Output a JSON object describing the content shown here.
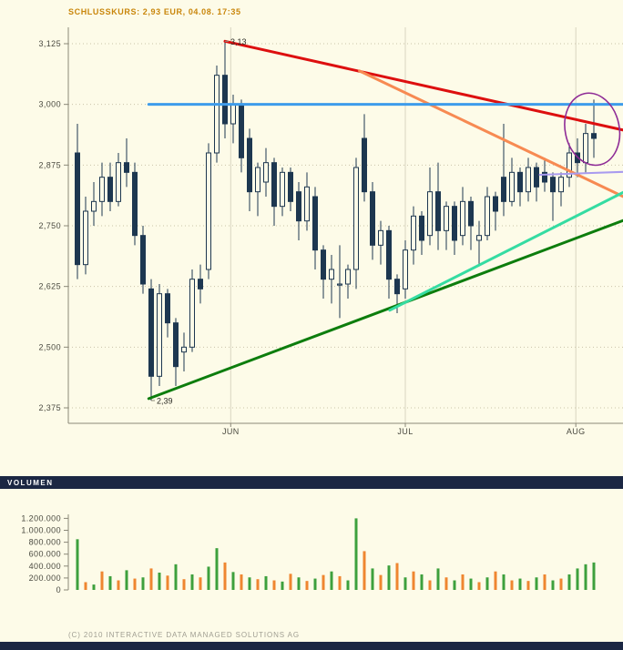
{
  "header": {
    "quote": "SCHLUSSKURS: 2,93 EUR, 04.08. 17:35"
  },
  "volume_panel": {
    "header_label": "VOLUMEN"
  },
  "footer": {
    "copyright": "(C) 2010 INTERACTIVE DATA MANAGED SOLUTIONS AG"
  },
  "colors": {
    "background": "#fdfbe8",
    "candle": "#1d3750",
    "volume_up_bar": "#3da03d",
    "volume_down_bar": "#ef8630",
    "panel_bar": "#1b2743",
    "quote_text": "#c9860b",
    "trend_red": "#dd0f0f",
    "trend_orange": "#f78a52",
    "trend_blue": "#3e9ceb",
    "trend_darkgreen": "#0d7d0d",
    "trend_springgreen": "#35dca2",
    "trend_lavender": "#a99bef",
    "highlight_purple": "#8e2b96"
  },
  "chart_data": {
    "type": "candlestick",
    "title": "",
    "last_price": "2,93",
    "price_axis": {
      "ticks": [
        {
          "label": "3,125",
          "value": 3.125
        },
        {
          "label": "3,000",
          "value": 3.0
        },
        {
          "label": "2,875",
          "value": 2.875
        },
        {
          "label": "2,750",
          "value": 2.75
        },
        {
          "label": "2,625",
          "value": 2.625
        },
        {
          "label": "2,500",
          "value": 2.5
        },
        {
          "label": "2,375",
          "value": 2.375
        }
      ],
      "range": [
        2.34,
        3.17
      ],
      "grid": "dotted-horizontal"
    },
    "x_axis": {
      "months": [
        {
          "label": "JUN",
          "i": 18.7
        },
        {
          "label": "JUL",
          "i": 40
        },
        {
          "label": "AUG",
          "i": 60.8
        }
      ]
    },
    "candles": [
      [
        2.9,
        2.96,
        2.64,
        2.67
      ],
      [
        2.67,
        2.81,
        2.65,
        2.78
      ],
      [
        2.78,
        2.84,
        2.75,
        2.8
      ],
      [
        2.8,
        2.88,
        2.77,
        2.85
      ],
      [
        2.85,
        2.88,
        2.78,
        2.8
      ],
      [
        2.8,
        2.9,
        2.79,
        2.88
      ],
      [
        2.88,
        2.93,
        2.83,
        2.86
      ],
      [
        2.86,
        2.88,
        2.71,
        2.73
      ],
      [
        2.73,
        2.75,
        2.61,
        2.63
      ],
      [
        2.62,
        2.64,
        2.39,
        2.44
      ],
      [
        2.44,
        2.63,
        2.42,
        2.61
      ],
      [
        2.61,
        2.62,
        2.52,
        2.55
      ],
      [
        2.55,
        2.56,
        2.42,
        2.46
      ],
      [
        2.49,
        2.53,
        2.45,
        2.5
      ],
      [
        2.5,
        2.66,
        2.49,
        2.64
      ],
      [
        2.64,
        2.67,
        2.59,
        2.62
      ],
      [
        2.66,
        2.92,
        2.64,
        2.9
      ],
      [
        2.9,
        3.08,
        2.88,
        3.06
      ],
      [
        3.06,
        3.13,
        2.93,
        2.96
      ],
      [
        2.96,
        3.02,
        2.92,
        3.0
      ],
      [
        3.0,
        3.01,
        2.86,
        2.89
      ],
      [
        2.93,
        2.95,
        2.78,
        2.82
      ],
      [
        2.82,
        2.88,
        2.77,
        2.87
      ],
      [
        2.84,
        2.91,
        2.81,
        2.88
      ],
      [
        2.88,
        2.89,
        2.75,
        2.79
      ],
      [
        2.79,
        2.87,
        2.77,
        2.86
      ],
      [
        2.86,
        2.87,
        2.78,
        2.8
      ],
      [
        2.82,
        2.84,
        2.72,
        2.76
      ],
      [
        2.76,
        2.86,
        2.74,
        2.83
      ],
      [
        2.81,
        2.83,
        2.66,
        2.7
      ],
      [
        2.7,
        2.71,
        2.6,
        2.64
      ],
      [
        2.64,
        2.69,
        2.59,
        2.66
      ],
      [
        2.63,
        2.71,
        2.56,
        2.63
      ],
      [
        2.63,
        2.67,
        2.6,
        2.66
      ],
      [
        2.66,
        2.89,
        2.62,
        2.87
      ],
      [
        2.93,
        2.98,
        2.8,
        2.82
      ],
      [
        2.82,
        2.84,
        2.68,
        2.71
      ],
      [
        2.71,
        2.76,
        2.67,
        2.74
      ],
      [
        2.74,
        2.75,
        2.6,
        2.64
      ],
      [
        2.64,
        2.65,
        2.57,
        2.61
      ],
      [
        2.62,
        2.72,
        2.6,
        2.7
      ],
      [
        2.7,
        2.79,
        2.67,
        2.77
      ],
      [
        2.77,
        2.78,
        2.69,
        2.72
      ],
      [
        2.73,
        2.87,
        2.71,
        2.82
      ],
      [
        2.82,
        2.88,
        2.7,
        2.74
      ],
      [
        2.74,
        2.8,
        2.7,
        2.79
      ],
      [
        2.79,
        2.8,
        2.69,
        2.72
      ],
      [
        2.73,
        2.83,
        2.71,
        2.8
      ],
      [
        2.8,
        2.81,
        2.7,
        2.75
      ],
      [
        2.72,
        2.76,
        2.67,
        2.73
      ],
      [
        2.73,
        2.83,
        2.72,
        2.81
      ],
      [
        2.81,
        2.82,
        2.74,
        2.78
      ],
      [
        2.85,
        2.96,
        2.77,
        2.8
      ],
      [
        2.8,
        2.89,
        2.79,
        2.86
      ],
      [
        2.86,
        2.87,
        2.79,
        2.82
      ],
      [
        2.82,
        2.89,
        2.8,
        2.87
      ],
      [
        2.87,
        2.88,
        2.8,
        2.83
      ],
      [
        2.86,
        2.89,
        2.82,
        2.84
      ],
      [
        2.85,
        2.86,
        2.76,
        2.82
      ],
      [
        2.82,
        2.86,
        2.79,
        2.85
      ],
      [
        2.85,
        2.92,
        2.83,
        2.9
      ],
      [
        2.9,
        2.93,
        2.85,
        2.88
      ],
      [
        2.88,
        2.96,
        2.86,
        2.94
      ],
      [
        2.94,
        3.01,
        2.89,
        2.93
      ]
    ],
    "volume_unit": "thousands",
    "volumes": [
      [
        850,
        "g"
      ],
      [
        130,
        "o"
      ],
      [
        90,
        "g"
      ],
      [
        310,
        "o"
      ],
      [
        230,
        "g"
      ],
      [
        160,
        "o"
      ],
      [
        330,
        "g"
      ],
      [
        190,
        "o"
      ],
      [
        210,
        "g"
      ],
      [
        360,
        "o"
      ],
      [
        290,
        "g"
      ],
      [
        240,
        "o"
      ],
      [
        430,
        "g"
      ],
      [
        180,
        "o"
      ],
      [
        260,
        "g"
      ],
      [
        210,
        "o"
      ],
      [
        390,
        "g"
      ],
      [
        700,
        "g"
      ],
      [
        460,
        "o"
      ],
      [
        300,
        "g"
      ],
      [
        260,
        "o"
      ],
      [
        210,
        "g"
      ],
      [
        180,
        "o"
      ],
      [
        230,
        "g"
      ],
      [
        160,
        "o"
      ],
      [
        140,
        "g"
      ],
      [
        270,
        "o"
      ],
      [
        210,
        "g"
      ],
      [
        150,
        "o"
      ],
      [
        190,
        "g"
      ],
      [
        250,
        "o"
      ],
      [
        310,
        "g"
      ],
      [
        230,
        "o"
      ],
      [
        160,
        "g"
      ],
      [
        1200,
        "g"
      ],
      [
        650,
        "o"
      ],
      [
        360,
        "g"
      ],
      [
        250,
        "o"
      ],
      [
        410,
        "g"
      ],
      [
        450,
        "o"
      ],
      [
        210,
        "g"
      ],
      [
        310,
        "o"
      ],
      [
        260,
        "g"
      ],
      [
        160,
        "o"
      ],
      [
        360,
        "g"
      ],
      [
        210,
        "o"
      ],
      [
        160,
        "g"
      ],
      [
        260,
        "o"
      ],
      [
        190,
        "g"
      ],
      [
        130,
        "o"
      ],
      [
        210,
        "g"
      ],
      [
        310,
        "o"
      ],
      [
        260,
        "g"
      ],
      [
        160,
        "o"
      ],
      [
        190,
        "g"
      ],
      [
        150,
        "o"
      ],
      [
        210,
        "g"
      ],
      [
        260,
        "o"
      ],
      [
        160,
        "g"
      ],
      [
        190,
        "o"
      ],
      [
        260,
        "g"
      ],
      [
        360,
        "g"
      ],
      [
        430,
        "g"
      ],
      [
        460,
        "g"
      ]
    ],
    "volume_axis": {
      "ticks": [
        {
          "label": "1.200.000",
          "value": 1200
        },
        {
          "label": "1.000.000",
          "value": 1000
        },
        {
          "label": "800.000",
          "value": 800
        },
        {
          "label": "600.000",
          "value": 600
        },
        {
          "label": "400.000",
          "value": 400
        },
        {
          "label": "200.000",
          "value": 200
        },
        {
          "label": "0",
          "value": 0
        }
      ]
    },
    "trendlines": [
      {
        "name": "descending-resistance-red",
        "from": [
          18,
          3.13
        ],
        "to": [
          66.6,
          2.947
        ],
        "color": "#dd0f0f",
        "width": 3
      },
      {
        "name": "descending-resistance-orange",
        "from": [
          34.4,
          3.069
        ],
        "to": [
          66.6,
          2.81
        ],
        "color": "#f78a52",
        "width": 3
      },
      {
        "name": "horizontal-resistance-blue",
        "from": [
          8.7,
          3.0
        ],
        "to": [
          66.6,
          3.0
        ],
        "color": "#3e9ceb",
        "width": 3
      },
      {
        "name": "ascending-support-darkgreen",
        "from": [
          8.7,
          2.394
        ],
        "to": [
          66.6,
          2.761
        ],
        "color": "#0d7d0d",
        "width": 3
      },
      {
        "name": "ascending-support-springgreen",
        "from": [
          38.1,
          2.576
        ],
        "to": [
          66.6,
          2.819
        ],
        "color": "#35dca2",
        "width": 3
      },
      {
        "name": "level-line-lavender",
        "from": [
          56.4,
          2.855
        ],
        "to": [
          66.6,
          2.861
        ],
        "color": "#a99bef",
        "width": 2
      }
    ],
    "ellipse": {
      "ci": 62.8,
      "cp": 2.949,
      "ri": 3.3,
      "rp": 0.075,
      "rot": -12,
      "color": "#8e2b96"
    },
    "annotations": [
      {
        "label": "3,13",
        "i": 18,
        "price": 3.13
      },
      {
        "label": "2,39",
        "i": 9,
        "price": 2.39
      }
    ]
  }
}
